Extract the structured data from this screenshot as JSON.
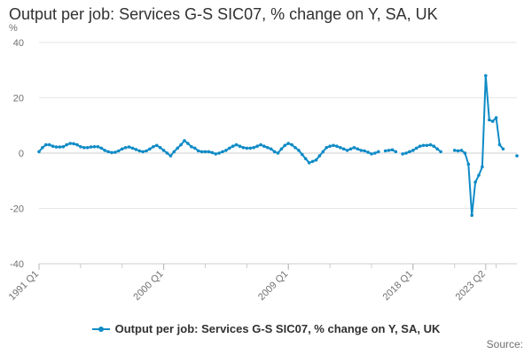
{
  "chart_data": {
    "type": "line",
    "title": "Output per job: Services G-S SIC07, % change on Y, SA, UK",
    "ylabel": "%",
    "xlabel": "",
    "ylim": [
      -40,
      40
    ],
    "yticks": [
      40,
      20,
      0,
      -20,
      -40
    ],
    "xtick_labels": [
      "1991 Q1",
      "2000 Q1",
      "2009 Q1",
      "2018 Q1",
      "2023 Q2"
    ],
    "grid": "horizontal",
    "legend_position": "bottom",
    "color": "#0f8bc6",
    "source_label": "Source:",
    "series": [
      {
        "name": "Output per job: Services G-S SIC07, % change on Y, SA, UK",
        "start_period": "1991 Q1",
        "values": [
          0.5,
          2.0,
          3.0,
          3.0,
          2.5,
          2.2,
          2.2,
          2.3,
          3.0,
          3.5,
          3.4,
          3.0,
          2.3,
          2.0,
          2.0,
          2.2,
          2.3,
          2.3,
          1.8,
          1.0,
          0.5,
          0.2,
          0.3,
          0.8,
          1.5,
          2.0,
          2.2,
          1.8,
          1.3,
          0.8,
          0.5,
          0.8,
          1.5,
          2.3,
          2.8,
          2.0,
          1.0,
          0.0,
          -1.0,
          0.5,
          1.8,
          3.0,
          4.5,
          3.5,
          2.3,
          1.8,
          0.8,
          0.5,
          0.5,
          0.5,
          0.2,
          -0.3,
          0.0,
          0.5,
          1.0,
          1.8,
          2.5,
          3.0,
          2.5,
          2.0,
          1.8,
          1.8,
          2.0,
          2.5,
          3.0,
          2.5,
          2.0,
          1.5,
          0.5,
          0.0,
          1.5,
          2.8,
          3.5,
          3.0,
          2.0,
          1.0,
          -0.5,
          -2.0,
          -3.5,
          -3.0,
          -2.5,
          -1.0,
          0.5,
          2.0,
          2.5,
          2.8,
          2.5,
          2.0,
          1.5,
          1.0,
          1.5,
          2.0,
          1.5,
          1.0,
          0.8,
          0.3,
          -0.3,
          0.0,
          0.5,
          null,
          0.8,
          1.0,
          1.2,
          0.5,
          null,
          -0.3,
          0.0,
          0.5,
          1.0,
          1.8,
          2.5,
          2.8,
          2.8,
          3.0,
          2.5,
          1.5,
          0.5,
          null,
          null,
          null,
          1.0,
          0.8,
          1.0,
          0.0,
          -4.0,
          -22.5,
          -10.5,
          -8.0,
          -5.0,
          28.0,
          12.0,
          11.5,
          12.8,
          3.0,
          1.5,
          null,
          null,
          null,
          -1.0
        ]
      }
    ]
  }
}
